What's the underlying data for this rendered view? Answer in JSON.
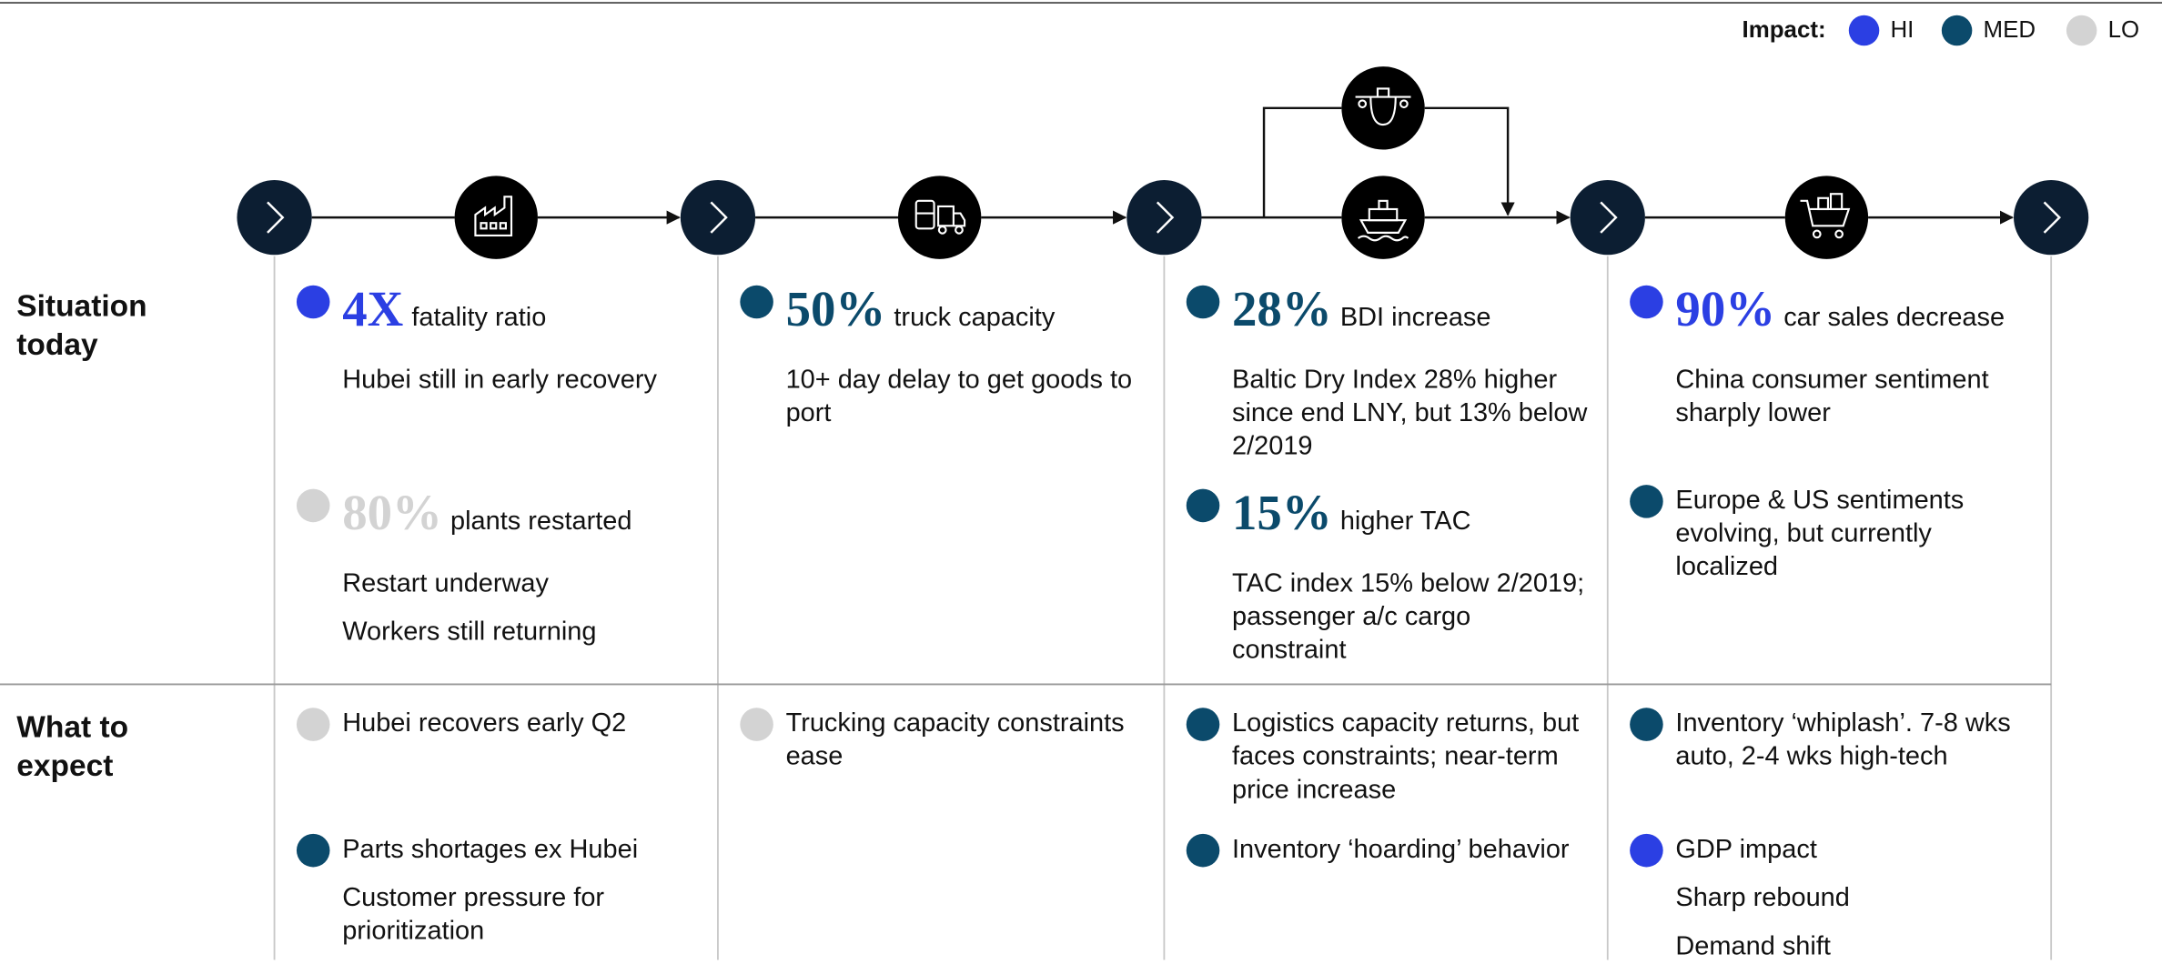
{
  "legend": {
    "label": "Impact:",
    "items": [
      {
        "name": "HI",
        "color": "#2b3fe3"
      },
      {
        "name": "MED",
        "color": "#0b4a6b"
      },
      {
        "name": "LO",
        "color": "#d3d3d3"
      }
    ]
  },
  "rows": [
    "Situation today",
    "What to expect"
  ],
  "columns": [
    {
      "situation": [
        {
          "impact": "HI",
          "stat": "4X",
          "label": "fatality ratio",
          "notes": [
            "Hubei still in early recovery"
          ]
        },
        {
          "impact": "LO",
          "stat": "80%",
          "label": "plants restarted",
          "notes": [
            "Restart underway",
            "Workers still returning"
          ]
        }
      ],
      "expect": [
        {
          "impact": "LO",
          "label": "Hubei recovers early Q2",
          "notes": []
        },
        {
          "impact": "MED",
          "label": "Parts shortages ex Hubei",
          "notes": [
            "Customer pressure for prioritization"
          ]
        }
      ]
    },
    {
      "situation": [
        {
          "impact": "MED",
          "stat": "50%",
          "label": "truck capacity",
          "notes": [
            "10+ day delay to get goods to port"
          ]
        }
      ],
      "expect": [
        {
          "impact": "LO",
          "label": "Trucking capacity constraints ease",
          "notes": []
        }
      ]
    },
    {
      "situation": [
        {
          "impact": "MED",
          "stat": "28%",
          "label": "BDI increase",
          "notes": [
            "Baltic Dry Index 28% higher since end LNY, but 13% below 2/2019"
          ]
        },
        {
          "impact": "MED",
          "stat": "15%",
          "label": "higher TAC",
          "notes": [
            "TAC index 15% below 2/2019; passenger a/c cargo constraint"
          ]
        }
      ],
      "expect": [
        {
          "impact": "MED",
          "label": "Logistics capacity returns, but faces constraints; near-term price increase",
          "notes": []
        },
        {
          "impact": "MED",
          "label": "Inventory ‘hoarding’ behavior",
          "notes": []
        }
      ]
    },
    {
      "situation": [
        {
          "impact": "HI",
          "stat": "90%",
          "label": "car sales decrease",
          "notes": [
            "China consumer sentiment sharply lower"
          ]
        },
        {
          "impact": "MED",
          "label": "Europe & US sentiments evolving, but currently localized",
          "notes": []
        }
      ],
      "expect": [
        {
          "impact": "MED",
          "label": "Inventory ‘whiplash’. 7-8 wks auto, 2-4 wks high-tech",
          "notes": []
        },
        {
          "impact": "HI",
          "label": "GDP impact",
          "notes": [
            "Sharp rebound",
            "Demand shift"
          ]
        }
      ]
    }
  ]
}
